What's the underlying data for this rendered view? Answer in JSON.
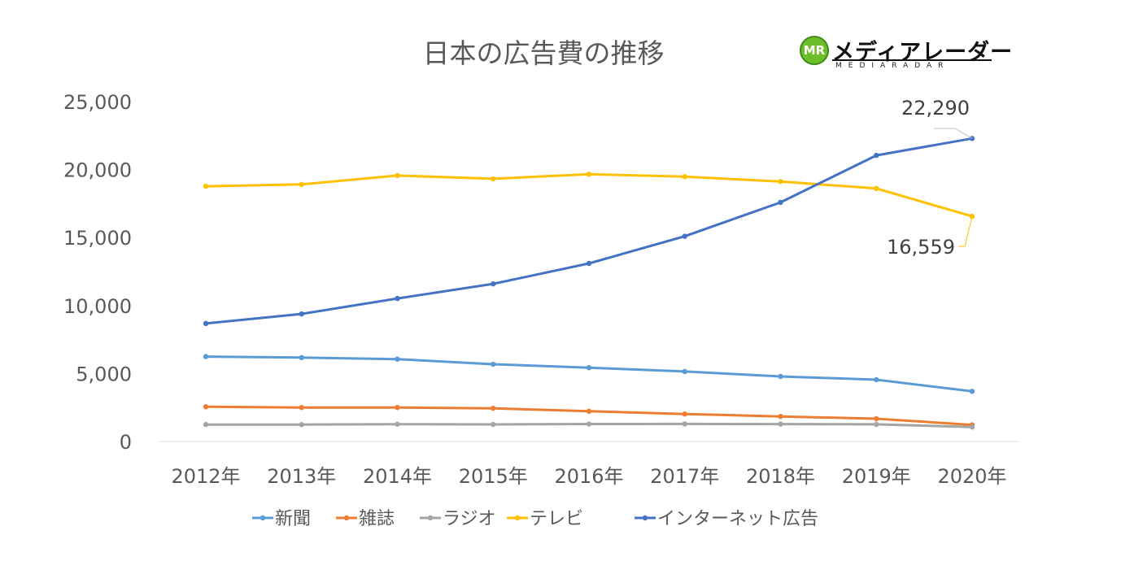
{
  "logo": {
    "badge_text": "MR",
    "main_text": "メディアレーダー",
    "sub_text": "MEDIARADAR"
  },
  "chart_data": {
    "type": "line",
    "title": "日本の広告費の推移",
    "xlabel": "",
    "ylabel": "",
    "categories": [
      "2012年",
      "2013年",
      "2014年",
      "2015年",
      "2016年",
      "2017年",
      "2018年",
      "2019年",
      "2020年"
    ],
    "y_ticks": [
      "0",
      "5,000",
      "10,000",
      "15,000",
      "20,000",
      "25,000"
    ],
    "ylim": [
      0,
      25000
    ],
    "grid": false,
    "legend_position": "bottom",
    "series": [
      {
        "name": "新聞",
        "color": "#5b9bd5",
        "values": [
          6242,
          6170,
          6057,
          5679,
          5431,
          5147,
          4784,
          4547,
          3688
        ]
      },
      {
        "name": "雑誌",
        "color": "#ed7d31",
        "values": [
          2551,
          2499,
          2500,
          2443,
          2223,
          2023,
          1841,
          1675,
          1223
        ]
      },
      {
        "name": "ラジオ",
        "color": "#a5a5a5",
        "values": [
          1246,
          1243,
          1272,
          1254,
          1285,
          1290,
          1278,
          1260,
          1066
        ]
      },
      {
        "name": "テレビ",
        "color": "#ffc000",
        "values": [
          18770,
          18912,
          19564,
          19323,
          19657,
          19478,
          19123,
          18612,
          16559
        ]
      },
      {
        "name": "インターネット広告",
        "color": "#4472c4",
        "values": [
          8680,
          9381,
          10519,
          11594,
          13100,
          15094,
          17589,
          21048,
          22290
        ]
      }
    ],
    "annotations": [
      {
        "series": "インターネット広告",
        "category": "2020年",
        "text": "22,290"
      },
      {
        "series": "テレビ",
        "category": "2020年",
        "text": "16,559"
      }
    ]
  }
}
